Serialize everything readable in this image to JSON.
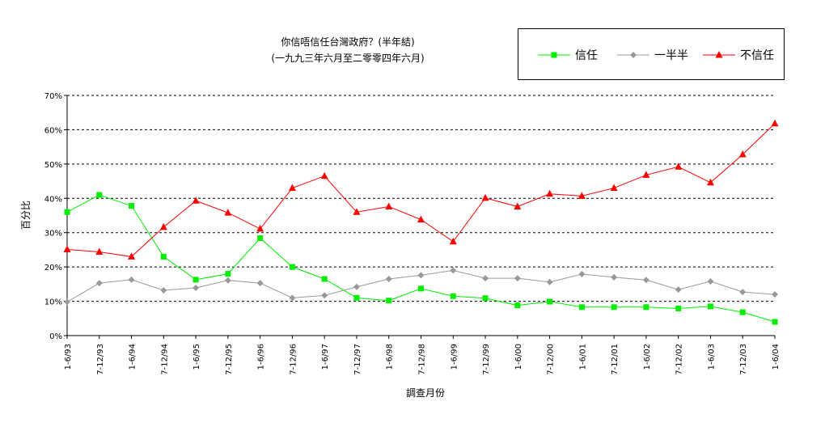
{
  "title": {
    "line1": "你信唔信任台灣政府？(半年結)",
    "line2": "(一九九三年六月至二零零四年六月)"
  },
  "chart_data": {
    "type": "line",
    "categories": [
      "1-6/93",
      "7-12/93",
      "1-6/94",
      "7-12/94",
      "1-6/95",
      "7-12/95",
      "1-6/96",
      "7-12/96",
      "1-6/97",
      "7-12/97",
      "1-6/98",
      "7-12/98",
      "1-6/99",
      "7-12/99",
      "1-6/00",
      "7-12/00",
      "1-6/01",
      "7-12/01",
      "1-6/02",
      "7-12/02",
      "1-6/03",
      "7-12/03",
      "1-6/04"
    ],
    "series": [
      {
        "name": "信任",
        "color": "#00ee00",
        "marker": "square",
        "values": [
          36,
          41,
          37.8,
          23,
          16.3,
          18,
          28.4,
          20,
          16.5,
          11,
          10.2,
          13.7,
          11.5,
          10.9,
          8.8,
          9.9,
          8.3,
          8.3,
          8.3,
          7.9,
          8.5,
          6.8,
          4
        ]
      },
      {
        "name": "一半半",
        "color": "#999999",
        "marker": "diamond",
        "values": [
          9.8,
          15.3,
          16.3,
          13.2,
          13.9,
          16.1,
          15.3,
          11,
          11.7,
          14.2,
          16.5,
          17.6,
          19,
          16.7,
          16.7,
          15.6,
          17.9,
          17,
          16.2,
          13.4,
          15.8,
          12.7,
          12
        ]
      },
      {
        "name": "不信任",
        "color": "#ff0000",
        "marker": "triangle",
        "values": [
          25.1,
          24.4,
          23,
          31.6,
          39.3,
          35.8,
          31.1,
          43,
          46.5,
          36,
          37.6,
          33.8,
          27.4,
          40.1,
          37.6,
          41.3,
          40.7,
          43,
          46.8,
          49.2,
          44.6,
          52.8,
          61.8
        ]
      }
    ],
    "ylabel": "百分比",
    "xlabel": "調查月份",
    "ylim": [
      0,
      70
    ],
    "yticks": [
      "0%",
      "10%",
      "20%",
      "30%",
      "40%",
      "50%",
      "60%",
      "70%"
    ],
    "grid": true,
    "legend_position": "top-right"
  }
}
